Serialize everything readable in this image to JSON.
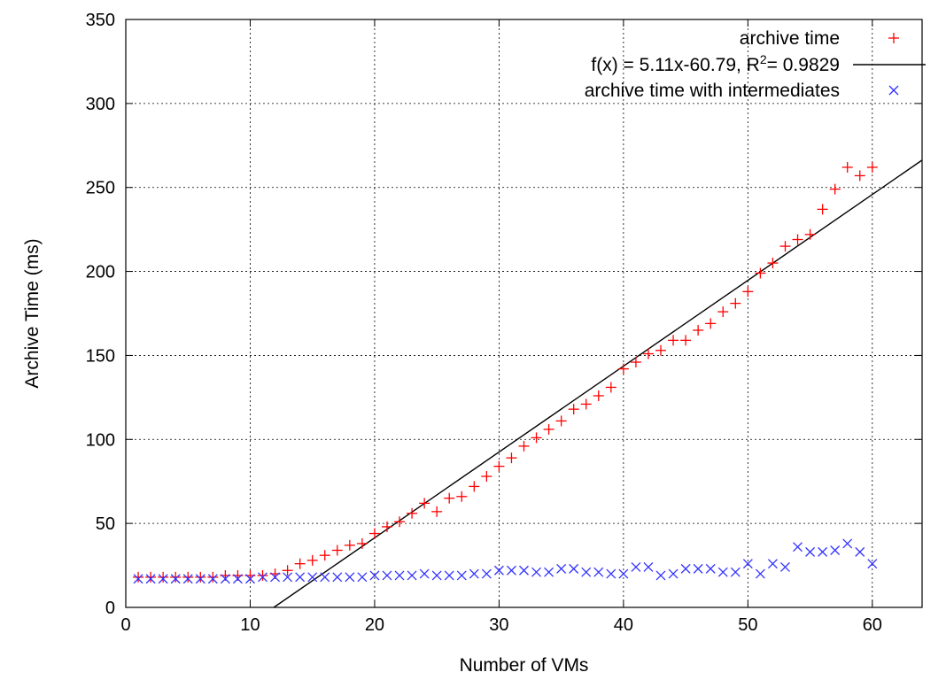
{
  "chart_data": {
    "type": "scatter",
    "xlabel": "Number of VMs",
    "ylabel": "Archive Time (ms)",
    "xlim": [
      0,
      64
    ],
    "ylim": [
      0,
      350
    ],
    "xticks": [
      0,
      10,
      20,
      30,
      40,
      50,
      60
    ],
    "yticks": [
      0,
      50,
      100,
      150,
      200,
      250,
      300,
      350
    ],
    "grid": true,
    "legend_position": "top-right",
    "series": [
      {
        "name": "archive time",
        "marker": "plus",
        "color": "#ff0000",
        "x": [
          1,
          2,
          3,
          4,
          5,
          6,
          7,
          8,
          9,
          10,
          11,
          12,
          13,
          14,
          15,
          16,
          17,
          18,
          19,
          20,
          21,
          22,
          23,
          24,
          25,
          26,
          27,
          28,
          29,
          30,
          31,
          32,
          33,
          34,
          35,
          36,
          37,
          38,
          39,
          40,
          41,
          42,
          43,
          44,
          45,
          46,
          47,
          48,
          49,
          50,
          51,
          52,
          53,
          54,
          55,
          56,
          57,
          58,
          59,
          60
        ],
        "y": [
          18,
          18,
          18,
          18,
          18,
          18,
          18,
          19,
          19,
          19,
          19,
          20,
          22,
          26,
          28,
          31,
          34,
          37,
          38,
          44,
          48,
          51,
          56,
          62,
          57,
          65,
          66,
          72,
          78,
          84,
          89,
          96,
          101,
          106,
          111,
          118,
          121,
          126,
          131,
          142,
          146,
          151,
          153,
          159,
          159,
          165,
          169,
          176,
          181,
          188,
          199,
          205,
          215,
          219,
          222,
          237,
          249,
          262,
          257,
          262
        ]
      },
      {
        "name": "f(x) = 5.11x-60.79, R",
        "name_sup": "2",
        "name_suffix": "= 0.9829",
        "type": "line",
        "color": "#000000",
        "slope": 5.11,
        "intercept": -60.79
      },
      {
        "name": "archive time with intermediates",
        "marker": "x",
        "color": "#3333ff",
        "x": [
          1,
          2,
          3,
          4,
          5,
          6,
          7,
          8,
          9,
          10,
          11,
          12,
          13,
          14,
          15,
          16,
          17,
          18,
          19,
          20,
          21,
          22,
          23,
          24,
          25,
          26,
          27,
          28,
          29,
          30,
          31,
          32,
          33,
          34,
          35,
          36,
          37,
          38,
          39,
          40,
          41,
          42,
          43,
          44,
          45,
          46,
          47,
          48,
          49,
          50,
          51,
          52,
          53,
          54,
          55,
          56,
          57,
          58,
          59,
          60
        ],
        "y": [
          17,
          17,
          17,
          17,
          17,
          17,
          17,
          17,
          17,
          17,
          18,
          18,
          18,
          18,
          18,
          18,
          18,
          18,
          18,
          19,
          19,
          19,
          19,
          20,
          19,
          19,
          19,
          20,
          20,
          22,
          22,
          22,
          21,
          21,
          23,
          23,
          21,
          21,
          20,
          20,
          24,
          24,
          19,
          20,
          23,
          23,
          23,
          21,
          21,
          26,
          20,
          26,
          24,
          36,
          33,
          33,
          34,
          38,
          33,
          26
        ]
      }
    ]
  }
}
